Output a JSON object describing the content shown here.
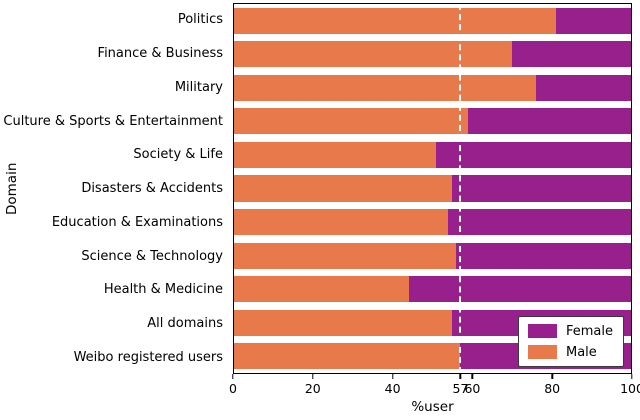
{
  "chart_data": {
    "type": "bar",
    "orientation": "horizontal",
    "stacked": true,
    "title": "",
    "xlabel": "%user",
    "ylabel": "Domain",
    "xlim": [
      0,
      100
    ],
    "xticks": [
      0,
      20,
      40,
      57,
      60,
      80,
      100
    ],
    "categories": [
      "Politics",
      "Finance & Business",
      "Military",
      "Culture & Sports & Entertainment",
      "Society & Life",
      "Disasters & Accidents",
      "Education & Examinations",
      "Science & Technology",
      "Health & Medicine",
      "All domains",
      "Weibo registered users"
    ],
    "series": [
      {
        "name": "Male",
        "color": "#e8794a",
        "values": [
          81,
          70,
          76,
          59,
          51,
          55,
          54,
          56,
          44,
          55,
          57
        ]
      },
      {
        "name": "Female",
        "color": "#97208c",
        "values": [
          19,
          30,
          24,
          41,
          49,
          45,
          46,
          44,
          56,
          45,
          43
        ]
      }
    ],
    "reference_line": {
      "x": 57,
      "style": "dashed",
      "color": "#ffffff"
    },
    "legend": {
      "position": "lower right",
      "entries": [
        "Female",
        "Male"
      ]
    },
    "grid": false
  }
}
